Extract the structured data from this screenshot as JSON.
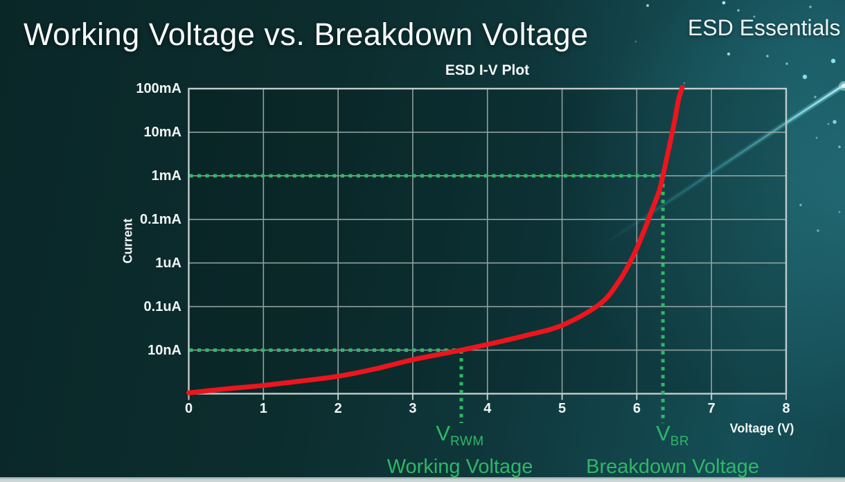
{
  "page": {
    "title": "Working Voltage vs. Breakdown Voltage",
    "brand": "ESD Essentials"
  },
  "chart_data": {
    "type": "line",
    "title": "ESD I-V Plot",
    "xlabel": "Voltage (V)",
    "ylabel": "Current",
    "x_ticks": [
      "0",
      "1",
      "2",
      "3",
      "4",
      "5",
      "6",
      "7",
      "8"
    ],
    "y_ticks": [
      "100mA",
      "10mA",
      "1mA",
      "0.1mA",
      "1uA",
      "0.1uA",
      "10nA"
    ],
    "x_range_volts": [
      0,
      8
    ],
    "y_scale": "log-decades, one labeled decade per gridline, top to bottom",
    "grid": true,
    "legend_position": "none",
    "grid_color": "#9fadac",
    "series": [
      {
        "name": "ESD device I-V curve",
        "color": "#ec151e",
        "points_voltage_vs_decades_above_bottom_gridline": [
          [
            0,
            0.02
          ],
          [
            0.5,
            0.11
          ],
          [
            1,
            0.19
          ],
          [
            1.5,
            0.29
          ],
          [
            2,
            0.4
          ],
          [
            2.5,
            0.57
          ],
          [
            3,
            0.78
          ],
          [
            3.65,
            1.0
          ],
          [
            4,
            1.13
          ],
          [
            4.5,
            1.33
          ],
          [
            5,
            1.57
          ],
          [
            5.5,
            2.05
          ],
          [
            5.75,
            2.55
          ],
          [
            5.95,
            3.15
          ],
          [
            6.1,
            3.75
          ],
          [
            6.2,
            4.2
          ],
          [
            6.3,
            4.65
          ],
          [
            6.35,
            5.0
          ],
          [
            6.42,
            5.55
          ],
          [
            6.5,
            6.2
          ],
          [
            6.56,
            6.75
          ],
          [
            6.61,
            7.03
          ]
        ]
      }
    ],
    "curve_crossings": [
      {
        "current": "10nA",
        "voltage_V": 3.65
      },
      {
        "current": "1mA",
        "voltage_V": 6.35
      },
      {
        "current": "100mA",
        "voltage_V": 6.6
      }
    ],
    "markers": [
      {
        "symbol": "V",
        "subscript": "RWM",
        "caption": "Working Voltage",
        "voltage_V": 3.65,
        "current_level": "10nA",
        "decades_above_bottom": 1,
        "color": "#2fb768",
        "guide_style": "dotted"
      },
      {
        "symbol": "V",
        "subscript": "BR",
        "caption": "Breakdown Voltage",
        "voltage_V": 6.35,
        "current_level": "1mA",
        "decades_above_bottom": 5,
        "color": "#2fb768",
        "guide_style": "dotted"
      }
    ]
  },
  "colors": {
    "accent_green": "#2fb768",
    "curve_red": "#ec151e",
    "grid_gray": "#9fadac",
    "streak_cyan": "#55dcef",
    "background_dark": "#0a2728",
    "background_teal": "#155059"
  }
}
